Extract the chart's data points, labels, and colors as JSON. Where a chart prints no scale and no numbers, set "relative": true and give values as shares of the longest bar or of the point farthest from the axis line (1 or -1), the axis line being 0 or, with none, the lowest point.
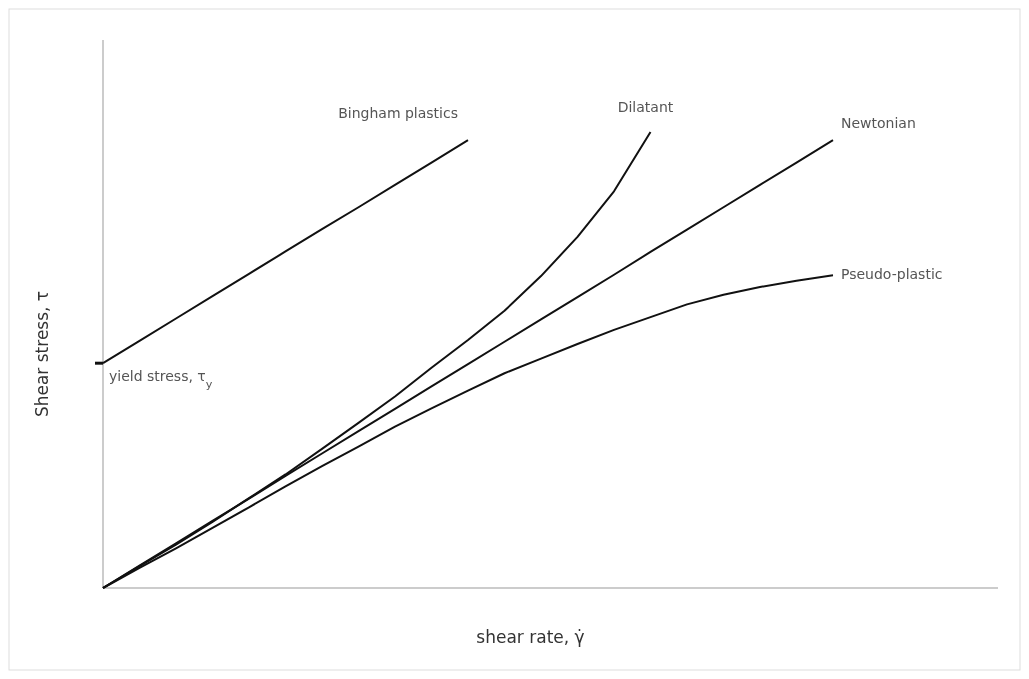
{
  "chart_data": {
    "type": "line",
    "relative": true,
    "xlabel": "shear rate, γ̇",
    "ylabel": "Shear stress, τ",
    "marker": "none",
    "line_style": "solid",
    "annotations": [
      "yield stress, τ$_{y}$"
    ],
    "categories": [
      null,
      null,
      null,
      null,
      null,
      null,
      null,
      null,
      null,
      null,
      null,
      null,
      null,
      null,
      null,
      null,
      null,
      null,
      null,
      null,
      null
    ],
    "series": [
      {
        "name": "Bingham plastics",
        "color": "#111111",
        "values": [
          0.493,
          0.542,
          0.591,
          0.64,
          0.689,
          0.738,
          0.787,
          0.835,
          0.884,
          0.933,
          0.982,
          null,
          null,
          null,
          null,
          null,
          null,
          null,
          null,
          null,
          null
        ]
      },
      {
        "name": "Dilatant",
        "color": "#111111",
        "values": [
          0,
          0.048,
          0.095,
          0.145,
          0.197,
          0.249,
          0.305,
          0.362,
          0.42,
          0.483,
          0.544,
          0.608,
          0.684,
          0.77,
          0.87,
          1,
          null,
          null,
          null,
          null,
          null
        ]
      },
      {
        "name": "Newtonian",
        "color": "#111111",
        "values": [
          0,
          0.049,
          0.098,
          0.147,
          0.196,
          0.246,
          0.295,
          0.344,
          0.393,
          0.442,
          0.491,
          0.54,
          0.589,
          0.638,
          0.687,
          0.737,
          0.786,
          0.835,
          0.884,
          0.933,
          0.982
        ]
      },
      {
        "name": "Pseudo-plastic",
        "color": "#111111",
        "values": [
          0,
          0.044,
          0.087,
          0.132,
          0.177,
          0.223,
          0.267,
          0.31,
          0.354,
          0.394,
          0.433,
          0.471,
          0.503,
          0.535,
          0.566,
          0.594,
          0.622,
          0.643,
          0.66,
          0.674,
          0.686
        ]
      }
    ]
  }
}
